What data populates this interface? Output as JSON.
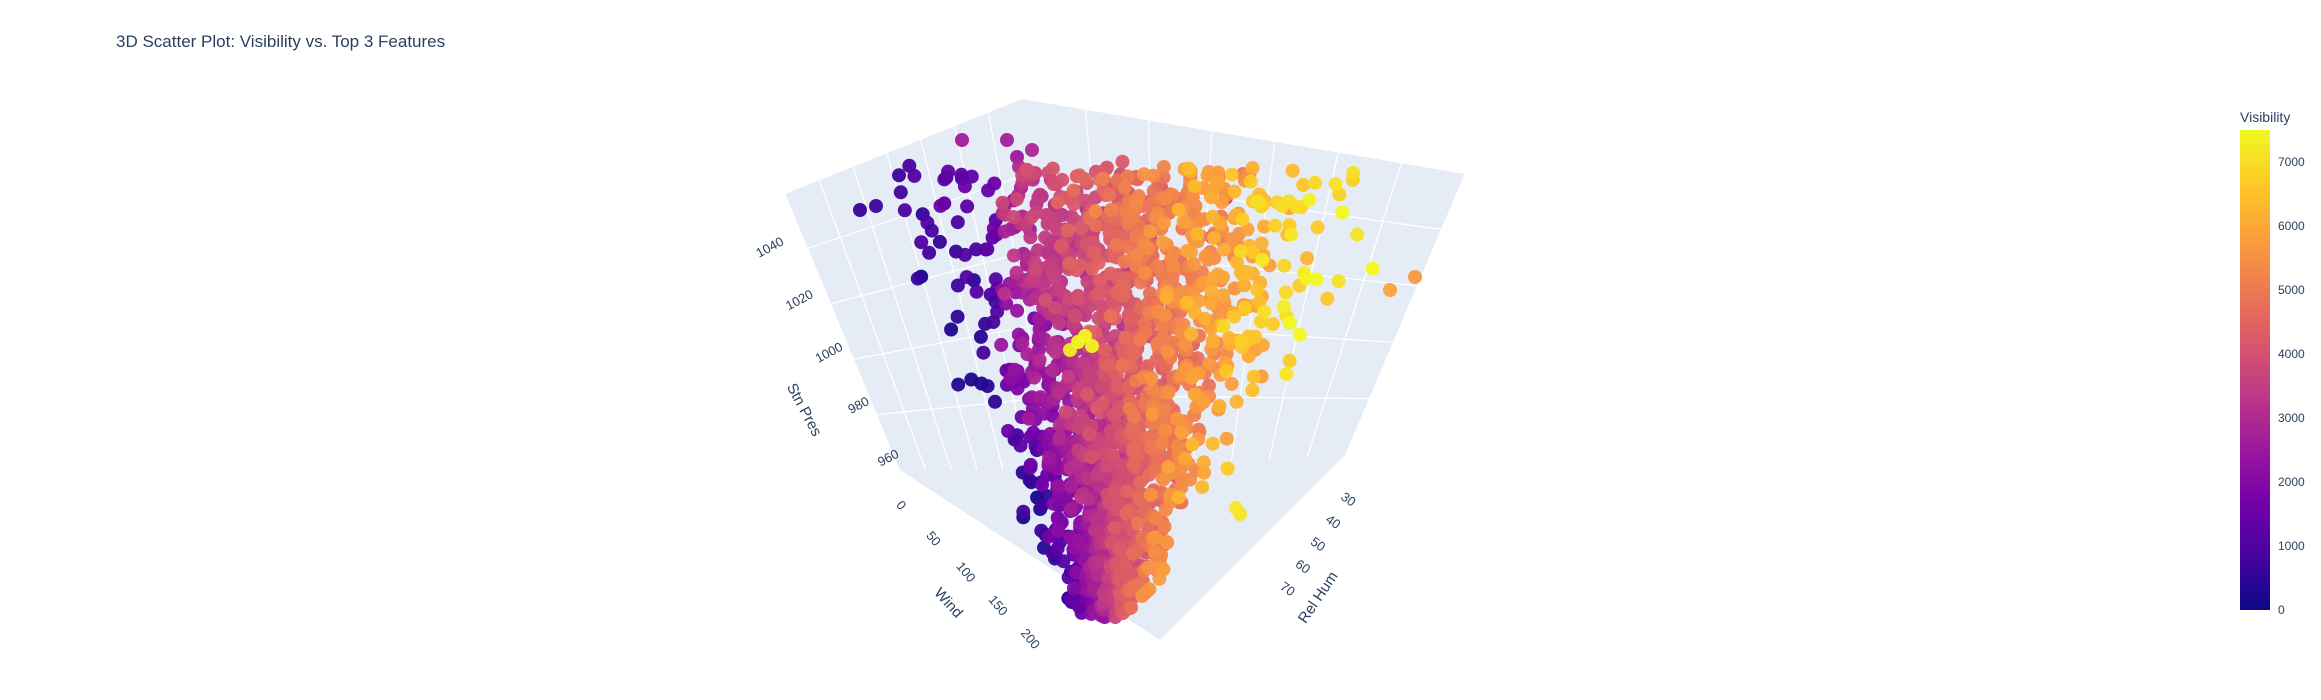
{
  "chart_data": {
    "type": "scatter",
    "subtype": "3d",
    "title": "3D Scatter Plot: Visibility vs. Top 3 Features",
    "axes": {
      "x": {
        "label": "Wind",
        "ticks": [
          0,
          50,
          100,
          150,
          200
        ],
        "range": [
          0,
          220
        ]
      },
      "y": {
        "label": "Rel Hum",
        "ticks": [
          30,
          40,
          50,
          60,
          70
        ],
        "range": [
          22,
          80
        ]
      },
      "z": {
        "label": "Stn Pres",
        "ticks": [
          960,
          980,
          1000,
          1020,
          1040
        ],
        "range": [
          950,
          1048
        ]
      }
    },
    "colorbar": {
      "title": "Visibility",
      "ticks": [
        0,
        1000,
        2000,
        3000,
        4000,
        5000,
        6000,
        7000
      ],
      "range": [
        0,
        7500
      ],
      "colorscale": "plasma"
    },
    "scene_background": "#e5ecf6",
    "grid": true
  }
}
